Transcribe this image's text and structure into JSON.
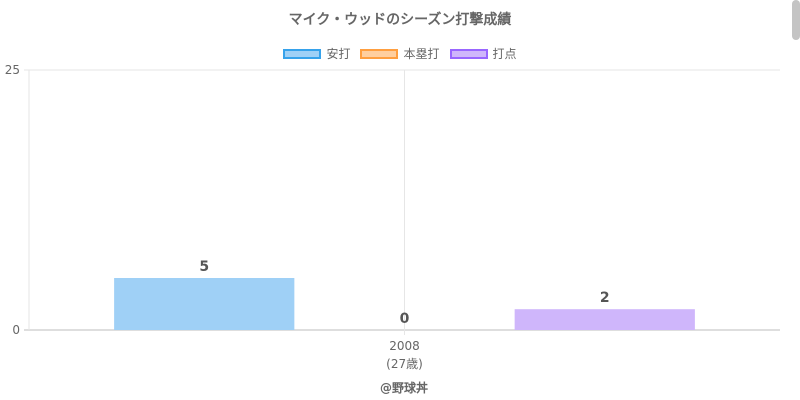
{
  "chart_data": {
    "type": "bar",
    "title": "マイク・ウッドのシーズン打撃成績",
    "categories": [
      "2008"
    ],
    "category_sublabels": [
      "(27歳)"
    ],
    "series": [
      {
        "name": "安打",
        "values": [
          5
        ],
        "color": "#9fd0f6",
        "border": "#36a2eb"
      },
      {
        "name": "本塁打",
        "values": [
          0
        ],
        "color": "#ffcf9f",
        "border": "#ff9f40"
      },
      {
        "name": "打点",
        "values": [
          2
        ],
        "color": "#cfb6fb",
        "border": "#9966ff"
      }
    ],
    "ylim": [
      0,
      25
    ],
    "yticks": [
      "0",
      "25"
    ],
    "grid": true,
    "legend": "top-center",
    "data_labels": [
      "5",
      "0",
      "2"
    ]
  },
  "credit": "@野球丼"
}
